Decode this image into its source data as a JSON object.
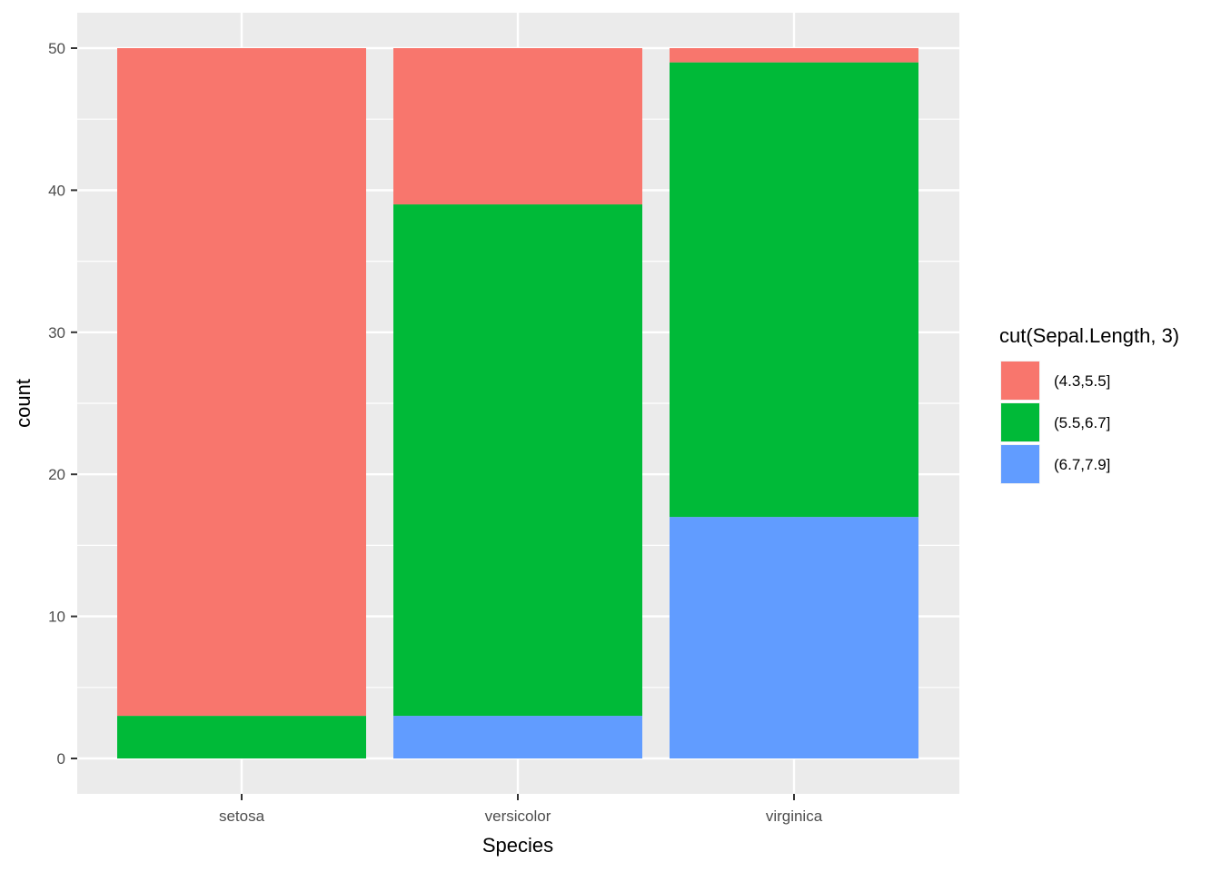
{
  "chart_data": {
    "type": "bar",
    "stacked": true,
    "categories": [
      "setosa",
      "versicolor",
      "virginica"
    ],
    "series": [
      {
        "name": "(4.3,5.5]",
        "color": "#F8766D",
        "values": [
          47,
          11,
          1
        ]
      },
      {
        "name": "(5.5,6.7]",
        "color": "#00BA38",
        "values": [
          3,
          36,
          32
        ]
      },
      {
        "name": "(6.7,7.9]",
        "color": "#619CFF",
        "values": [
          0,
          3,
          17
        ]
      }
    ],
    "xlabel": "Species",
    "ylabel": "count",
    "ylim": [
      0,
      50
    ],
    "yticks": [
      0,
      10,
      20,
      30,
      40,
      50
    ],
    "y_minor_ticks": [
      5,
      15,
      25,
      35,
      45
    ],
    "legend_title": "cut(Sepal.Length, 3)",
    "legend_position": "right",
    "grid": true,
    "colors": {
      "panel_background": "#EBEBEB",
      "grid": "#FFFFFF",
      "tick_text": "#4D4D4D",
      "tick_mark": "#333333"
    }
  }
}
